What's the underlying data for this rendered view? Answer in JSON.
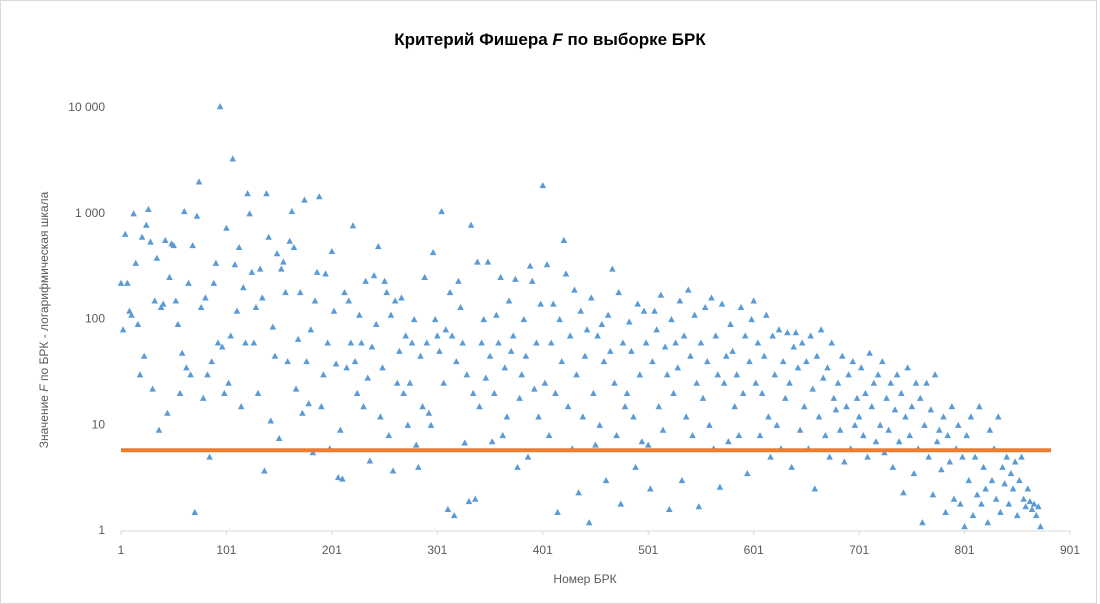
{
  "chart_data": {
    "type": "scatter",
    "title": [
      "Критерий Фишера ",
      "F",
      " по выборке БРК"
    ],
    "x_label": "Номер БРК",
    "y_label": [
      "Значение  ",
      "F",
      " по БРК - логарифмическая шкала"
    ],
    "log_y": true,
    "xlim": [
      1,
      901
    ],
    "xticks": [
      1,
      101,
      201,
      301,
      401,
      501,
      601,
      701,
      801,
      901
    ],
    "ylim": [
      1,
      10000
    ],
    "yticks": [
      1,
      10,
      100,
      {
        "value": 1000,
        "label": "1 000"
      },
      {
        "value": 10000,
        "label": "10 000"
      }
    ],
    "series": [
      {
        "color": "#5b9bd5",
        "marker": "triangle",
        "x": [
          1,
          3,
          5,
          7,
          9,
          11,
          13,
          15,
          17,
          19,
          21,
          23,
          25,
          27,
          29,
          31,
          33,
          35,
          37,
          39,
          41,
          43,
          45,
          47,
          49,
          51,
          53,
          55,
          57,
          59,
          61,
          63,
          65,
          67,
          69,
          71,
          73,
          75,
          77,
          79,
          81,
          83,
          85,
          87,
          89,
          91,
          93,
          95,
          97,
          99,
          101,
          103,
          105,
          107,
          109,
          111,
          113,
          115,
          117,
          119,
          121,
          123,
          125,
          127,
          129,
          131,
          133,
          135,
          137,
          139,
          141,
          143,
          145,
          147,
          149,
          151,
          153,
          155,
          157,
          159,
          161,
          163,
          165,
          167,
          169,
          171,
          173,
          175,
          177,
          179,
          181,
          183,
          185,
          187,
          189,
          191,
          193,
          195,
          197,
          199,
          201,
          203,
          205,
          207,
          209,
          211,
          213,
          215,
          217,
          219,
          221,
          223,
          225,
          227,
          229,
          231,
          233,
          235,
          237,
          239,
          241,
          243,
          245,
          247,
          249,
          251,
          253,
          255,
          257,
          259,
          261,
          263,
          265,
          267,
          269,
          271,
          273,
          275,
          277,
          279,
          281,
          283,
          285,
          287,
          289,
          291,
          293,
          295,
          297,
          299,
          301,
          303,
          305,
          307,
          309,
          311,
          313,
          315,
          317,
          319,
          321,
          323,
          325,
          327,
          329,
          331,
          333,
          335,
          337,
          339,
          341,
          343,
          345,
          347,
          349,
          351,
          353,
          355,
          357,
          359,
          361,
          363,
          365,
          367,
          369,
          371,
          373,
          375,
          377,
          379,
          381,
          383,
          385,
          387,
          389,
          391,
          393,
          395,
          397,
          399,
          401,
          403,
          405,
          407,
          409,
          411,
          413,
          415,
          417,
          419,
          421,
          423,
          425,
          427,
          429,
          431,
          433,
          435,
          437,
          439,
          441,
          443,
          445,
          447,
          449,
          451,
          453,
          455,
          457,
          459,
          461,
          463,
          465,
          467,
          469,
          471,
          473,
          475,
          477,
          479,
          481,
          483,
          485,
          487,
          489,
          491,
          493,
          495,
          497,
          499,
          501,
          503,
          505,
          507,
          509,
          511,
          513,
          515,
          517,
          519,
          521,
          523,
          525,
          527,
          529,
          531,
          533,
          535,
          537,
          539,
          541,
          543,
          545,
          547,
          549,
          551,
          553,
          555,
          557,
          559,
          561,
          563,
          565,
          567,
          569,
          571,
          573,
          575,
          577,
          579,
          581,
          583,
          585,
          587,
          589,
          591,
          593,
          595,
          597,
          599,
          601,
          603,
          605,
          607,
          609,
          611,
          613,
          615,
          617,
          619,
          621,
          623,
          625,
          627,
          629,
          631,
          633,
          635,
          637,
          639,
          641,
          643,
          645,
          647,
          649,
          651,
          653,
          655,
          657,
          659,
          661,
          663,
          665,
          667,
          669,
          671,
          673,
          675,
          677,
          679,
          681,
          683,
          685,
          687,
          689,
          691,
          693,
          695,
          697,
          699,
          701,
          703,
          705,
          707,
          709,
          711,
          713,
          715,
          717,
          719,
          721,
          723,
          725,
          727,
          729,
          731,
          733,
          735,
          737,
          739,
          741,
          743,
          745,
          747,
          749,
          751,
          753,
          755,
          757,
          759,
          761,
          763,
          765,
          767,
          769,
          771,
          773,
          775,
          777,
          779,
          781,
          783,
          785,
          787,
          789,
          791,
          793,
          795,
          797,
          799,
          801,
          803,
          805,
          807,
          809,
          811,
          813,
          815,
          817,
          819,
          821,
          823,
          825,
          827,
          829,
          831,
          833,
          835,
          837,
          839,
          841,
          843,
          845,
          847,
          849,
          851,
          853,
          855,
          857,
          859,
          861,
          863,
          865,
          867,
          869,
          871,
          873
        ],
        "values": [
          220,
          80,
          640,
          220,
          120,
          110,
          1000,
          340,
          90,
          30,
          600,
          45,
          780,
          1100,
          540,
          22,
          150,
          380,
          9,
          130,
          140,
          560,
          13,
          250,
          520,
          500,
          150,
          90,
          20,
          48,
          1050,
          35,
          220,
          30,
          500,
          1.5,
          950,
          2000,
          130,
          18,
          160,
          30,
          5,
          40,
          220,
          340,
          60,
          10300,
          55,
          20,
          730,
          25,
          70,
          3300,
          330,
          120,
          480,
          15,
          200,
          60,
          1550,
          1000,
          280,
          60,
          130,
          20,
          300,
          160,
          3.7,
          1550,
          600,
          11,
          85,
          45,
          420,
          7.5,
          300,
          350,
          180,
          40,
          550,
          1050,
          480,
          22,
          65,
          180,
          13,
          1350,
          40,
          16,
          80,
          5.5,
          150,
          280,
          1450,
          15,
          30,
          270,
          60,
          6,
          440,
          120,
          38,
          3.2,
          9,
          3.1,
          180,
          35,
          150,
          60,
          770,
          40,
          20,
          110,
          60,
          15,
          230,
          28,
          4.6,
          55,
          260,
          90,
          490,
          12,
          35,
          230,
          180,
          8,
          110,
          3.7,
          150,
          25,
          50,
          160,
          20,
          70,
          10,
          25,
          60,
          100,
          6.5,
          4,
          45,
          15,
          250,
          60,
          13,
          10,
          430,
          100,
          70,
          50,
          1050,
          25,
          80,
          1.6,
          180,
          70,
          1.4,
          40,
          230,
          130,
          60,
          6.8,
          30,
          1.9,
          780,
          20,
          2,
          350,
          15,
          60,
          100,
          28,
          350,
          45,
          7,
          20,
          110,
          60,
          250,
          8,
          35,
          12,
          150,
          50,
          70,
          240,
          4,
          18,
          30,
          100,
          45,
          5,
          320,
          230,
          22,
          60,
          12,
          140,
          1850,
          25,
          330,
          8,
          60,
          140,
          20,
          1.5,
          100,
          40,
          560,
          270,
          15,
          70,
          6,
          190,
          30,
          2.3,
          120,
          12,
          45,
          80,
          1.2,
          160,
          20,
          6.5,
          70,
          10,
          90,
          40,
          3,
          110,
          50,
          300,
          25,
          8,
          180,
          1.8,
          60,
          15,
          20,
          95,
          50,
          12,
          4,
          140,
          30,
          7,
          120,
          60,
          6.5,
          2.5,
          40,
          120,
          80,
          15,
          170,
          9,
          55,
          30,
          1.6,
          100,
          20,
          60,
          35,
          150,
          3,
          70,
          12,
          190,
          45,
          8,
          110,
          25,
          1.7,
          60,
          18,
          130,
          40,
          10,
          160,
          6,
          70,
          30,
          2.6,
          140,
          25,
          45,
          7,
          90,
          50,
          15,
          30,
          8,
          130,
          20,
          70,
          3.5,
          40,
          100,
          150,
          25,
          60,
          8,
          20,
          45,
          110,
          12,
          5,
          70,
          30,
          10,
          80,
          6,
          40,
          18,
          75,
          25,
          4,
          55,
          75,
          35,
          9,
          60,
          15,
          40,
          6,
          70,
          22,
          2.5,
          45,
          12,
          80,
          28,
          8,
          35,
          5,
          60,
          18,
          14,
          25,
          9,
          45,
          4.5,
          15,
          30,
          6,
          40,
          10,
          18,
          12,
          35,
          8,
          20,
          5,
          48,
          15,
          25,
          7,
          30,
          10,
          40,
          5.5,
          18,
          9,
          25,
          4,
          14,
          30,
          7,
          20,
          2.3,
          12,
          35,
          8,
          15,
          3.5,
          25,
          6,
          18,
          1.2,
          10,
          25,
          5,
          14,
          2.2,
          30,
          7,
          9,
          3.8,
          12,
          1.5,
          8,
          4.5,
          15,
          2,
          6,
          10,
          1.8,
          5,
          1.1,
          8,
          3,
          12,
          1.4,
          5,
          2.2,
          15,
          1.8,
          4,
          2.5,
          1.2,
          9,
          3,
          6,
          2,
          12,
          1.5,
          4,
          2.8,
          5,
          1.8,
          3.5,
          2.5,
          4.5,
          1.4,
          3,
          5,
          2,
          1.7,
          2.5,
          1.9,
          1.6,
          1.8,
          1.4,
          1.7,
          1.1
        ]
      },
      {
        "color": "#ed7d31",
        "kind": "line",
        "x": [
          1,
          883
        ],
        "values": [
          5.8,
          5.8
        ]
      }
    ]
  }
}
